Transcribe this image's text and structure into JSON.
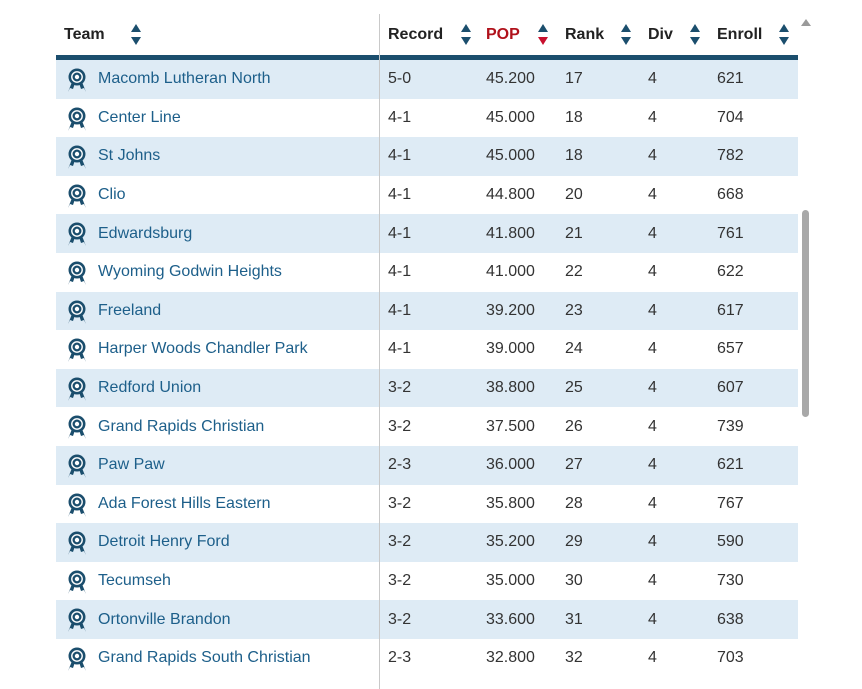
{
  "columns": [
    {
      "key": "team",
      "label": "Team"
    },
    {
      "key": "record",
      "label": "Record"
    },
    {
      "key": "pop",
      "label": "POP",
      "active": true,
      "sort": "desc"
    },
    {
      "key": "rank",
      "label": "Rank"
    },
    {
      "key": "div",
      "label": "Div"
    },
    {
      "key": "enroll",
      "label": "Enroll"
    }
  ],
  "rows": [
    {
      "team": "Macomb Lutheran North",
      "record": "5-0",
      "pop": "45.200",
      "rank": "17",
      "div": "4",
      "enroll": "621"
    },
    {
      "team": "Center Line",
      "record": "4-1",
      "pop": "45.000",
      "rank": "18",
      "div": "4",
      "enroll": "704"
    },
    {
      "team": "St Johns",
      "record": "4-1",
      "pop": "45.000",
      "rank": "18",
      "div": "4",
      "enroll": "782"
    },
    {
      "team": "Clio",
      "record": "4-1",
      "pop": "44.800",
      "rank": "20",
      "div": "4",
      "enroll": "668"
    },
    {
      "team": "Edwardsburg",
      "record": "4-1",
      "pop": "41.800",
      "rank": "21",
      "div": "4",
      "enroll": "761"
    },
    {
      "team": "Wyoming Godwin Heights",
      "record": "4-1",
      "pop": "41.000",
      "rank": "22",
      "div": "4",
      "enroll": "622"
    },
    {
      "team": "Freeland",
      "record": "4-1",
      "pop": "39.200",
      "rank": "23",
      "div": "4",
      "enroll": "617"
    },
    {
      "team": "Harper Woods Chandler Park",
      "record": "4-1",
      "pop": "39.000",
      "rank": "24",
      "div": "4",
      "enroll": "657"
    },
    {
      "team": "Redford Union",
      "record": "3-2",
      "pop": "38.800",
      "rank": "25",
      "div": "4",
      "enroll": "607"
    },
    {
      "team": "Grand Rapids Christian",
      "record": "3-2",
      "pop": "37.500",
      "rank": "26",
      "div": "4",
      "enroll": "739"
    },
    {
      "team": "Paw Paw",
      "record": "2-3",
      "pop": "36.000",
      "rank": "27",
      "div": "4",
      "enroll": "621"
    },
    {
      "team": "Ada Forest Hills Eastern",
      "record": "3-2",
      "pop": "35.800",
      "rank": "28",
      "div": "4",
      "enroll": "767"
    },
    {
      "team": "Detroit Henry Ford",
      "record": "3-2",
      "pop": "35.200",
      "rank": "29",
      "div": "4",
      "enroll": "590"
    },
    {
      "team": "Tecumseh",
      "record": "3-2",
      "pop": "35.000",
      "rank": "30",
      "div": "4",
      "enroll": "730"
    },
    {
      "team": "Ortonville Brandon",
      "record": "3-2",
      "pop": "33.600",
      "rank": "31",
      "div": "4",
      "enroll": "638"
    },
    {
      "team": "Grand Rapids South Christian",
      "record": "2-3",
      "pop": "32.800",
      "rank": "32",
      "div": "4",
      "enroll": "703"
    }
  ],
  "icons": {
    "team_icon": "award-ribbon-icon",
    "sort_icon": "sort-arrows-icon"
  },
  "colors": {
    "accent": "#1b4e6d",
    "active_sort": "#b0111b",
    "row_shade": "#deebf5",
    "link": "#1d5f8a"
  }
}
